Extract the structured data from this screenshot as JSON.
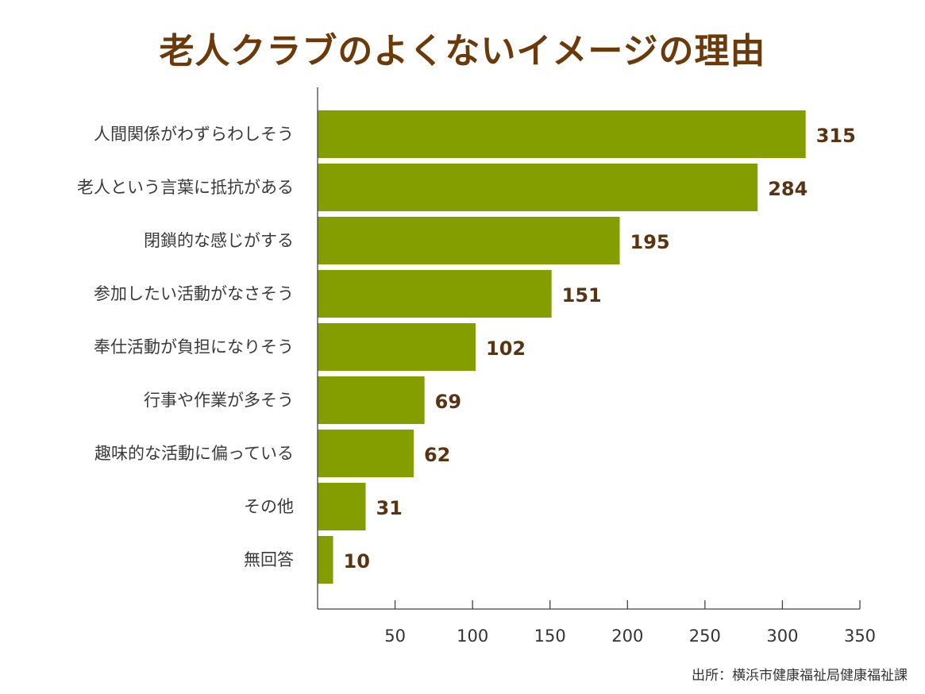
{
  "chart_data": {
    "type": "bar",
    "orientation": "horizontal",
    "title": "老人クラブのよくないイメージの理由",
    "categories": [
      "人間関係がわずらわしそう",
      "老人という言葉に抵抗がある",
      "閉鎖的な感じがする",
      "参加したい活動がなさそう",
      "奉仕活動が負担になりそう",
      "行事や作業が多そう",
      "趣味的な活動に偏っている",
      "その他",
      "無回答"
    ],
    "values": [
      315,
      284,
      195,
      151,
      102,
      69,
      62,
      31,
      10
    ],
    "data_labels": [
      "315",
      "284",
      "195",
      "151",
      "102",
      "69",
      "62",
      "31",
      "10"
    ],
    "xlim": [
      0,
      350
    ],
    "xticks": [
      50,
      100,
      150,
      200,
      250,
      300,
      350
    ],
    "xtick_labels": [
      "50",
      "100",
      "150",
      "200",
      "250",
      "300",
      "350"
    ],
    "grid": false,
    "colors": {
      "bar": "#849e00",
      "title": "#6b3a0a",
      "data_label": "#5a3412",
      "category_label": "#3a3a3a",
      "axis": "#444444"
    }
  },
  "source": "出所：横浜市健康福祉局健康福祉課"
}
